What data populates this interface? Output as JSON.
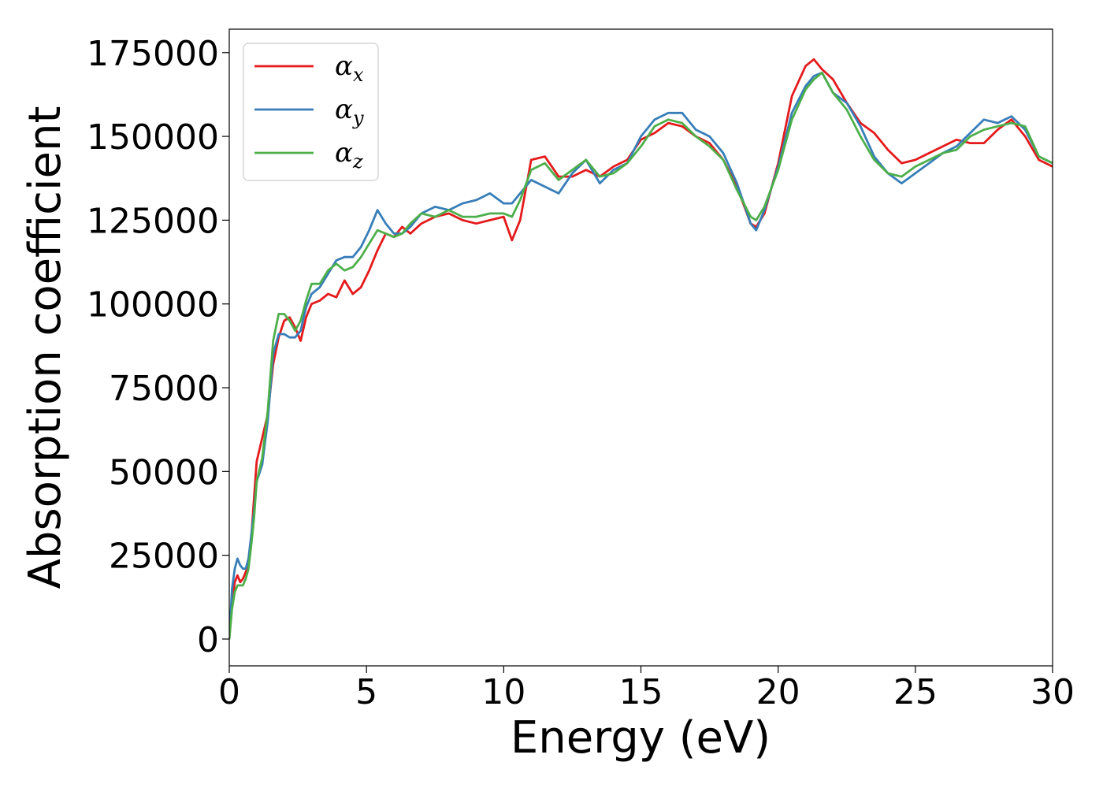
{
  "chart_data": {
    "type": "line",
    "xlabel": "Energy (eV)",
    "ylabel": "Absorption coefficient",
    "xlim": [
      0,
      30
    ],
    "ylim": [
      -8000,
      182000
    ],
    "xticks": [
      0,
      5,
      10,
      15,
      20,
      25,
      30
    ],
    "yticks": [
      0,
      25000,
      50000,
      75000,
      100000,
      125000,
      150000,
      175000
    ],
    "grid": false,
    "legend_position": "top-left",
    "x": [
      0,
      0.1,
      0.2,
      0.3,
      0.4,
      0.5,
      0.6,
      0.7,
      0.8,
      0.9,
      1.0,
      1.2,
      1.4,
      1.6,
      1.8,
      2.0,
      2.2,
      2.4,
      2.6,
      2.8,
      3.0,
      3.3,
      3.6,
      3.9,
      4.2,
      4.5,
      4.8,
      5.1,
      5.4,
      5.7,
      6.0,
      6.3,
      6.6,
      7.0,
      7.5,
      8.0,
      8.5,
      9.0,
      9.5,
      10.0,
      10.3,
      10.6,
      11.0,
      11.5,
      12.0,
      12.5,
      13.0,
      13.5,
      14.0,
      14.5,
      15.0,
      15.5,
      16.0,
      16.5,
      17.0,
      17.5,
      18.0,
      18.5,
      19.0,
      19.2,
      19.5,
      20.0,
      20.5,
      21.0,
      21.3,
      21.6,
      22.0,
      22.5,
      23.0,
      23.5,
      24.0,
      24.5,
      25.0,
      25.5,
      26.0,
      26.5,
      27.0,
      27.5,
      28.0,
      28.5,
      29.0,
      29.5,
      30.0
    ],
    "series": [
      {
        "name": "α_x",
        "color": "#e41a1c",
        "values": [
          0,
          10000,
          17000,
          19000,
          17000,
          18000,
          20000,
          22000,
          30000,
          42000,
          53000,
          60000,
          67000,
          82000,
          90000,
          95000,
          96000,
          93000,
          89000,
          96000,
          100000,
          101000,
          103000,
          102000,
          107000,
          103000,
          105000,
          110000,
          116000,
          121000,
          120000,
          123000,
          121000,
          124000,
          126000,
          127000,
          125000,
          124000,
          125000,
          126000,
          119000,
          125000,
          143000,
          144000,
          138000,
          138000,
          140000,
          138000,
          141000,
          143000,
          149000,
          151000,
          154000,
          153000,
          150000,
          148000,
          143000,
          135000,
          124000,
          123000,
          127000,
          142000,
          162000,
          171000,
          173000,
          170000,
          167000,
          160000,
          154000,
          151000,
          146000,
          142000,
          143000,
          145000,
          147000,
          149000,
          148000,
          148000,
          152000,
          155000,
          150000,
          143000,
          141000
        ]
      },
      {
        "name": "α_y",
        "color": "#377eb8",
        "values": [
          0,
          15000,
          21000,
          24000,
          22000,
          21000,
          21000,
          24000,
          31000,
          38000,
          47000,
          52000,
          65000,
          85000,
          91000,
          91000,
          90000,
          90000,
          92000,
          99000,
          103000,
          105000,
          109000,
          113000,
          114000,
          114000,
          117000,
          122000,
          128000,
          124000,
          121000,
          121000,
          123000,
          127000,
          129000,
          128000,
          130000,
          131000,
          133000,
          130000,
          130000,
          133000,
          137000,
          135000,
          133000,
          139000,
          143000,
          136000,
          140000,
          142000,
          150000,
          155000,
          157000,
          157000,
          152000,
          150000,
          145000,
          136000,
          124000,
          122000,
          128000,
          141000,
          157000,
          165000,
          168000,
          169000,
          163000,
          160000,
          153000,
          144000,
          139000,
          136000,
          139000,
          142000,
          145000,
          147000,
          151000,
          155000,
          154000,
          156000,
          152000,
          144000,
          142000
        ]
      },
      {
        "name": "α_z",
        "color": "#4daf4a",
        "values": [
          0,
          9000,
          14000,
          16000,
          16000,
          16000,
          18000,
          21000,
          28000,
          36000,
          47000,
          54000,
          68000,
          89000,
          97000,
          97000,
          95000,
          92000,
          95000,
          101000,
          106000,
          106000,
          110000,
          112000,
          110000,
          111000,
          114000,
          118000,
          122000,
          121000,
          120000,
          121000,
          124000,
          127000,
          126000,
          128000,
          126000,
          126000,
          127000,
          127000,
          126000,
          131000,
          140000,
          142000,
          137000,
          140000,
          143000,
          138000,
          139000,
          142000,
          147000,
          153000,
          155000,
          154000,
          150000,
          147000,
          143000,
          134000,
          126000,
          125000,
          129000,
          140000,
          155000,
          164000,
          167000,
          169000,
          163000,
          158000,
          150000,
          143000,
          139000,
          138000,
          141000,
          143000,
          145000,
          146000,
          150000,
          152000,
          153000,
          154000,
          153000,
          144000,
          142000
        ]
      }
    ]
  }
}
